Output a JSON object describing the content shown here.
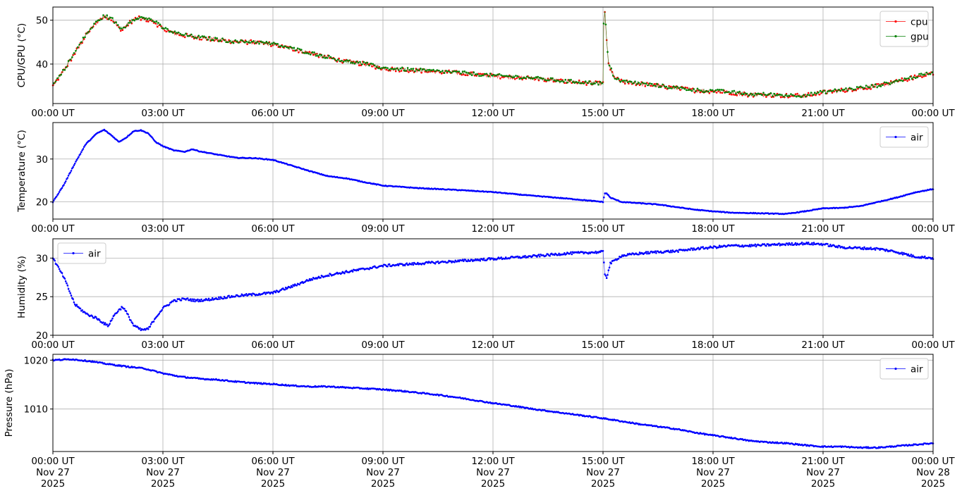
{
  "figure": {
    "background": "#ffffff",
    "grid_color": "#b0b0b0",
    "x_range_hours": [
      0,
      24
    ],
    "x_ticks_hours": [
      0,
      3,
      6,
      9,
      12,
      15,
      18,
      21,
      24
    ]
  },
  "chart_data": [
    {
      "type": "line",
      "ylabel": "CPU/GPU (°C)",
      "ylim": [
        31,
        53
      ],
      "y_ticks": [
        40,
        50
      ],
      "grid": true,
      "legend": "top-right",
      "x_tick_labels": [
        "00:00 UT",
        "03:00 UT",
        "06:00 UT",
        "09:00 UT",
        "12:00 UT",
        "15:00 UT",
        "18:00 UT",
        "21:00 UT",
        "00:00 UT"
      ],
      "series": [
        {
          "name": "cpu",
          "color": "#ff0000",
          "jitter": 0.5,
          "x": [
            0,
            0.3,
            0.6,
            0.9,
            1.2,
            1.4,
            1.6,
            1.8,
            1.9,
            2.1,
            2.3,
            2.5,
            2.7,
            3.0,
            3.3,
            3.6,
            4.0,
            4.5,
            5.0,
            5.5,
            6.0,
            6.5,
            7.0,
            7.5,
            8.0,
            8.5,
            9.0,
            10.0,
            11.0,
            12.0,
            13.0,
            14.0,
            15.0,
            15.02,
            15.05,
            15.1,
            15.15,
            15.3,
            15.5,
            16.0,
            16.5,
            17.0,
            17.5,
            18.0,
            18.5,
            19.0,
            19.5,
            20.0,
            20.5,
            21.0,
            21.5,
            22.0,
            22.5,
            23.0,
            23.5,
            24.0
          ],
          "y": [
            35,
            38.5,
            42.5,
            46.5,
            49.5,
            50.8,
            50.2,
            48.3,
            47.8,
            49.5,
            50.5,
            50.2,
            50,
            48,
            47,
            46.5,
            46,
            45.5,
            45,
            45,
            44.5,
            43.5,
            42.5,
            41.5,
            40.5,
            40,
            39,
            38.5,
            38,
            37.3,
            36.8,
            36,
            35.5,
            49,
            52,
            45,
            40,
            37,
            36,
            35.5,
            35,
            34.5,
            34,
            33.8,
            33.5,
            33,
            33,
            32.8,
            32.8,
            33.5,
            34,
            34.5,
            35,
            36,
            37,
            38
          ]
        },
        {
          "name": "gpu",
          "color": "#008000",
          "jitter": 0.4,
          "x": [
            0,
            0.3,
            0.6,
            0.9,
            1.2,
            1.4,
            1.6,
            1.8,
            1.9,
            2.1,
            2.3,
            2.5,
            2.7,
            3.0,
            3.3,
            3.6,
            4.0,
            4.5,
            5.0,
            5.5,
            6.0,
            6.5,
            7.0,
            7.5,
            8.0,
            8.5,
            9.0,
            10.0,
            11.0,
            12.0,
            13.0,
            14.0,
            15.0,
            15.02,
            15.05,
            15.1,
            15.15,
            15.3,
            15.5,
            16.0,
            16.5,
            17.0,
            17.5,
            18.0,
            18.5,
            19.0,
            19.5,
            20.0,
            20.5,
            21.0,
            21.5,
            22.0,
            22.5,
            23.0,
            23.5,
            24.0
          ],
          "y": [
            35.2,
            38.7,
            42.7,
            46.7,
            49.7,
            51,
            50.4,
            48.5,
            48,
            49.7,
            50.7,
            50.4,
            50.2,
            48.2,
            47.2,
            46.6,
            46.1,
            45.6,
            45.1,
            45.1,
            44.6,
            43.6,
            42.6,
            41.6,
            40.6,
            40.1,
            39.1,
            38.6,
            38.1,
            37.4,
            36.9,
            36.1,
            35.6,
            49.2,
            52.2,
            45.2,
            40.2,
            37.1,
            36.1,
            35.6,
            35.1,
            34.6,
            34.1,
            33.9,
            33.6,
            33.1,
            33.1,
            32.9,
            32.9,
            33.6,
            34.1,
            34.6,
            35.1,
            36.1,
            37.1,
            38.1
          ]
        }
      ]
    },
    {
      "type": "line",
      "ylabel": "Temperature (°C)",
      "ylim": [
        16,
        38.5
      ],
      "y_ticks": [
        20,
        30
      ],
      "grid": true,
      "legend": "top-right",
      "x_tick_labels": [
        "00:00 UT",
        "03:00 UT",
        "06:00 UT",
        "09:00 UT",
        "12:00 UT",
        "15:00 UT",
        "18:00 UT",
        "21:00 UT",
        "00:00 UT"
      ],
      "series": [
        {
          "name": "air",
          "color": "#0000ff",
          "jitter": 0.08,
          "x": [
            0,
            0.3,
            0.6,
            0.9,
            1.2,
            1.4,
            1.6,
            1.8,
            2.0,
            2.2,
            2.4,
            2.6,
            2.8,
            3.0,
            3.3,
            3.6,
            3.8,
            4.0,
            4.5,
            5.0,
            5.5,
            6.0,
            6.5,
            7.0,
            7.5,
            8.0,
            8.5,
            9.0,
            10.0,
            11.0,
            12.0,
            13.0,
            14.0,
            15.0,
            15.05,
            15.1,
            15.2,
            15.5,
            16.0,
            16.5,
            17.0,
            17.5,
            18.0,
            18.5,
            19.0,
            19.5,
            20.0,
            20.5,
            21.0,
            21.5,
            22.0,
            22.5,
            23.0,
            23.5,
            24.0
          ],
          "y": [
            20,
            24,
            29,
            33.5,
            36,
            36.8,
            35.5,
            34,
            35,
            36.5,
            36.7,
            36,
            34,
            33,
            32,
            31.7,
            32.3,
            31.8,
            31,
            30.3,
            30.2,
            29.8,
            28.5,
            27.2,
            26,
            25.5,
            24.6,
            23.8,
            23.2,
            22.8,
            22.3,
            21.5,
            20.8,
            20,
            22,
            22,
            21,
            20,
            19.7,
            19.4,
            18.8,
            18.2,
            17.8,
            17.5,
            17.4,
            17.3,
            17.2,
            17.8,
            18.5,
            18.6,
            19,
            20,
            21,
            22.2,
            23
          ]
        }
      ]
    },
    {
      "type": "line",
      "ylabel": "Humidity (%)",
      "ylim": [
        20,
        32.5
      ],
      "y_ticks": [
        20,
        25,
        30
      ],
      "grid": true,
      "legend": "top-left",
      "x_tick_labels": [
        "00:00 UT",
        "03:00 UT",
        "06:00 UT",
        "09:00 UT",
        "12:00 UT",
        "15:00 UT",
        "18:00 UT",
        "21:00 UT",
        "00:00 UT"
      ],
      "series": [
        {
          "name": "air",
          "color": "#0000ff",
          "jitter": 0.15,
          "x": [
            0,
            0.3,
            0.6,
            0.9,
            1.2,
            1.5,
            1.7,
            1.9,
            2.0,
            2.2,
            2.4,
            2.6,
            2.8,
            3.0,
            3.3,
            3.6,
            3.9,
            4.2,
            4.5,
            5.0,
            5.5,
            6.0,
            6.5,
            7.0,
            7.5,
            8.0,
            8.5,
            9.0,
            10.0,
            11.0,
            12.0,
            13.0,
            14.0,
            15.0,
            15.05,
            15.1,
            15.2,
            15.5,
            16.0,
            16.5,
            17.0,
            17.5,
            18.0,
            18.5,
            19.0,
            19.5,
            20.0,
            20.5,
            21.0,
            21.5,
            22.0,
            22.5,
            23.0,
            23.5,
            24.0
          ],
          "y": [
            30,
            27.5,
            24,
            22.8,
            22.2,
            21.2,
            22.8,
            23.7,
            23,
            21.3,
            20.7,
            20.8,
            22.3,
            23.5,
            24.5,
            24.7,
            24.5,
            24.6,
            24.8,
            25.1,
            25.3,
            25.5,
            26.3,
            27.2,
            27.8,
            28.2,
            28.6,
            29,
            29.3,
            29.6,
            29.9,
            30.2,
            30.6,
            30.8,
            28,
            27.5,
            29.3,
            30.3,
            30.6,
            30.8,
            30.9,
            31.2,
            31.4,
            31.6,
            31.6,
            31.7,
            31.8,
            31.9,
            31.8,
            31.4,
            31.3,
            31.2,
            30.8,
            30.2,
            30
          ]
        }
      ]
    },
    {
      "type": "line",
      "ylabel": "Pressure (hPa)",
      "ylim": [
        1001.3,
        1021.2
      ],
      "y_ticks": [
        1010,
        1020
      ],
      "grid": true,
      "legend": "top-right",
      "x_tick_labels": [
        "00:00 UT\nNov 27\n2025",
        "03:00 UT\nNov 27\n2025",
        "06:00 UT\nNov 27\n2025",
        "09:00 UT\nNov 27\n2025",
        "12:00 UT\nNov 27\n2025",
        "15:00 UT\nNov 27\n2025",
        "18:00 UT\nNov 27\n2025",
        "21:00 UT\nNov 27\n2025",
        "00:00 UT\nNov 28\n2025"
      ],
      "series": [
        {
          "name": "air",
          "color": "#0000ff",
          "jitter": 0.12,
          "x": [
            0,
            0.5,
            1.0,
            1.5,
            2.0,
            2.5,
            3.0,
            3.5,
            4.0,
            4.5,
            5.0,
            5.5,
            6.0,
            6.5,
            7.0,
            7.5,
            8.0,
            8.5,
            9.0,
            9.5,
            10.0,
            10.5,
            11.0,
            11.5,
            12.0,
            12.5,
            13.0,
            13.5,
            14.0,
            14.5,
            15.0,
            15.5,
            16.0,
            16.5,
            17.0,
            17.5,
            18.0,
            18.5,
            19.0,
            19.5,
            20.0,
            20.5,
            21.0,
            21.5,
            22.0,
            22.5,
            23.0,
            23.5,
            24.0
          ],
          "y": [
            1020,
            1020.2,
            1019.8,
            1019.2,
            1018.7,
            1018.3,
            1017.3,
            1016.6,
            1016.2,
            1016,
            1015.6,
            1015.3,
            1015.1,
            1014.8,
            1014.6,
            1014.6,
            1014.4,
            1014.2,
            1014,
            1013.7,
            1013.3,
            1012.9,
            1012.4,
            1011.8,
            1011.2,
            1010.7,
            1010.1,
            1009.6,
            1009.1,
            1008.6,
            1008.1,
            1007.5,
            1006.9,
            1006.4,
            1005.9,
            1005.2,
            1004.6,
            1004.1,
            1003.5,
            1003.2,
            1003,
            1002.6,
            1002.3,
            1002.3,
            1002.1,
            1002.1,
            1002.4,
            1002.7,
            1003
          ]
        }
      ]
    }
  ]
}
